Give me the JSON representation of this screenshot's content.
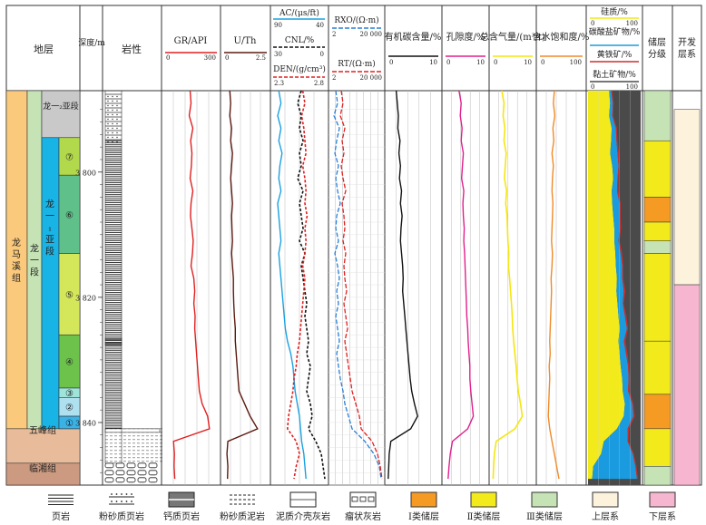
{
  "headers": {
    "formation": "地层",
    "depth": "深度/m",
    "lithology": "岩性",
    "gr": "GR/API",
    "uth": "U/Th",
    "ac": "AC/(μs/ft)",
    "cnl": "CNL/%",
    "den": "DEN/(g/cm³)",
    "rxo": "RXO/(Ω·m)",
    "rt": "RT/(Ω·m)",
    "toc": "有机碳含量/%",
    "por": "孔隙度/%",
    "gas": "总含气量/(m³/t)",
    "sw": "含水饱和度/%",
    "mineral_siliceous": "硅质/%",
    "mineral_carbonate": "碳酸盐矿物/%",
    "mineral_pyrite": "黄铁矿/%",
    "mineral_clay": "黏土矿物/%",
    "reservoir_grade": "储层分级",
    "dev_layer": "开发层系"
  },
  "scales": {
    "gr": [
      "0",
      "300"
    ],
    "uth": [
      "0",
      "2.5"
    ],
    "ac": [
      "90",
      "40"
    ],
    "cnl": [
      "30",
      "0"
    ],
    "den": [
      "2.3",
      "2.8"
    ],
    "rxo": [
      "2",
      "20 000"
    ],
    "rt": [
      "2",
      "20 000"
    ],
    "toc": [
      "0",
      "10"
    ],
    "por": [
      "0",
      "10"
    ],
    "gas": [
      "0",
      "10"
    ],
    "sw": [
      "0",
      "100"
    ],
    "mineral": [
      "0",
      "100"
    ]
  },
  "strata": {
    "formation_longmaxi": "龙马溪组",
    "member_long1": "龙一段",
    "submember_long1_1": "龙一₁亚段",
    "submember_long1_2": "龙一₂亚段",
    "formation_wufeng": "五峰组",
    "formation_linxiang": "临湘组",
    "layers": [
      "⑦",
      "⑥",
      "⑤",
      "④",
      "③",
      "②",
      "①"
    ]
  },
  "depth_ticks": [
    "3 800",
    "3 820",
    "3 840"
  ],
  "legend": {
    "shale": "页岩",
    "silty_shale": "粉砂质页岩",
    "calcareous_shale": "钙质页岩",
    "silty_mudstone": "粉砂质泥岩",
    "shelly_limestone": "泥质介壳灰岩",
    "nodular_limestone": "瘤状灰岩",
    "class1": "Ⅰ类储层",
    "class2": "Ⅱ类储层",
    "class3": "Ⅲ类储层",
    "upper": "上层系",
    "lower": "下层系"
  },
  "colors": {
    "gr": "#e02020",
    "uth": "#5a1a10",
    "ac": "#1aa0e0",
    "cnl": "#111111",
    "den": "#e02020",
    "rxo": "#2a7fd4",
    "rt": "#e02020",
    "toc": "#111111",
    "por": "#e0208c",
    "gas": "#f5e610",
    "sw": "#f08a28",
    "siliceous": "#f2ea1a",
    "carbonate": "#1a9be0",
    "pyrite": "#c83030",
    "clay": "#4a4a4a",
    "class1": "#f59a22",
    "class2": "#f2ea1a",
    "class3": "#c5e3b5",
    "upper": "#fdf2dc",
    "lower": "#f7b6cf",
    "long1_1": "#19b4e6",
    "member_long1": "#c5e3b5",
    "formation_longmaxi": "#fbc97b",
    "wufeng": "#e8bc9a",
    "linxiang": "#cc9a80",
    "submember_long1_2": "#c9c9c9",
    "layer1": "#3ab2e6",
    "layer2": "#aee0f0",
    "layer3": "#9ee4d8",
    "layer4": "#6cc24a",
    "layer5": "#d4e65a",
    "layer6": "#5fc08a",
    "layer7": "#b2d84c"
  },
  "chart_data": {
    "type": "well-log",
    "depth_axis": {
      "unit": "m",
      "range": [
        3787,
        3850
      ],
      "ticks": [
        3800,
        3820,
        3840
      ]
    },
    "depth": [
      3787,
      3789,
      3791,
      3793,
      3795,
      3797,
      3799,
      3801,
      3803,
      3805,
      3807,
      3809,
      3811,
      3813,
      3815,
      3817,
      3819,
      3821,
      3823,
      3825,
      3827,
      3829,
      3831,
      3833,
      3835,
      3837,
      3839,
      3841,
      3843,
      3845,
      3847,
      3849
    ],
    "curves": [
      {
        "name": "GR",
        "unit": "API",
        "range": [
          0,
          300
        ],
        "values": [
          145,
          150,
          140,
          160,
          148,
          155,
          152,
          145,
          160,
          150,
          147,
          155,
          162,
          158,
          150,
          165,
          170,
          165,
          172,
          170,
          175,
          180,
          185,
          190,
          195,
          210,
          240,
          250,
          55,
          60,
          58,
          62
        ]
      },
      {
        "name": "U/Th",
        "unit": "",
        "range": [
          0,
          2.5
        ],
        "values": [
          0.4,
          0.45,
          0.4,
          0.5,
          0.45,
          0.55,
          0.5,
          0.45,
          0.5,
          0.55,
          0.5,
          0.52,
          0.55,
          0.5,
          0.55,
          0.6,
          0.6,
          0.62,
          0.65,
          0.7,
          0.7,
          0.75,
          0.8,
          0.85,
          0.9,
          1.2,
          1.5,
          1.9,
          0.3,
          0.25,
          0.3,
          0.28
        ]
      },
      {
        "name": "AC",
        "unit": "μs/ft",
        "range": [
          90,
          40
        ],
        "values": [
          84,
          82,
          85,
          82,
          84,
          81,
          83,
          84,
          82,
          85,
          84,
          83,
          82,
          84,
          83,
          82,
          81,
          80,
          79,
          78,
          76,
          73,
          71,
          70,
          69,
          67,
          65,
          64,
          63,
          61,
          60,
          59
        ]
      },
      {
        "name": "CNL",
        "unit": "%",
        "range": [
          30,
          0
        ],
        "values": [
          14,
          16,
          14,
          15,
          13,
          15,
          14,
          16,
          13,
          15,
          14,
          13,
          15,
          12,
          14,
          13,
          12,
          11,
          12,
          11,
          10,
          11,
          9,
          10,
          11,
          9,
          8,
          10,
          6,
          3,
          2,
          1
        ]
      },
      {
        "name": "DEN",
        "unit": "g/cm³",
        "range": [
          2.3,
          2.8
        ],
        "values": [
          2.58,
          2.6,
          2.57,
          2.59,
          2.6,
          2.61,
          2.58,
          2.6,
          2.61,
          2.6,
          2.62,
          2.6,
          2.61,
          2.6,
          2.58,
          2.6,
          2.59,
          2.58,
          2.57,
          2.56,
          2.55,
          2.53,
          2.52,
          2.5,
          2.49,
          2.47,
          2.45,
          2.44,
          2.52,
          2.55,
          2.52,
          2.5
        ]
      },
      {
        "name": "TOC",
        "unit": "%",
        "range": [
          0,
          10
        ],
        "values": [
          1.8,
          2.0,
          2.2,
          2.1,
          2.5,
          2.3,
          2.6,
          2.4,
          2.8,
          2.6,
          2.9,
          2.7,
          2.6,
          2.8,
          3.0,
          3.1,
          3.0,
          3.2,
          3.4,
          3.6,
          3.8,
          4.0,
          4.2,
          4.4,
          4.7,
          5.2,
          5.8,
          4.5,
          0.8,
          0.5,
          0.4,
          0.3
        ]
      },
      {
        "name": "POR",
        "unit": "%",
        "range": [
          0,
          10
        ],
        "values": [
          3.5,
          4.0,
          3.8,
          4.2,
          4.0,
          4.5,
          4.3,
          4.1,
          4.6,
          4.4,
          4.5,
          4.7,
          4.6,
          4.8,
          4.9,
          5.0,
          5.1,
          5.2,
          5.3,
          5.5,
          5.6,
          5.8,
          6.0,
          6.0,
          6.2,
          6.5,
          6.8,
          5.5,
          2.0,
          1.5,
          1.2,
          1.0
        ]
      },
      {
        "name": "Gas",
        "unit": "m³/t",
        "range": [
          0,
          10
        ],
        "values": [
          2.5,
          3.0,
          2.8,
          3.2,
          3.0,
          3.5,
          3.3,
          3.1,
          3.6,
          3.4,
          3.7,
          3.8,
          3.9,
          4.1,
          4.0,
          4.3,
          4.5,
          4.7,
          4.9,
          5.0,
          5.2,
          5.5,
          5.8,
          6.0,
          6.3,
          6.8,
          7.2,
          5.5,
          1.2,
          0.8,
          0.6,
          0.5
        ]
      },
      {
        "name": "Sw",
        "unit": "%",
        "range": [
          0,
          100
        ],
        "values": [
          35,
          33,
          36,
          32,
          34,
          30,
          33,
          31,
          30,
          32,
          31,
          30,
          29,
          31,
          30,
          28,
          29,
          28,
          27,
          26,
          25,
          26,
          24,
          25,
          24,
          23,
          22,
          25,
          30,
          35,
          40,
          45
        ]
      }
    ],
    "mineral_series": [
      {
        "name": "硅质",
        "boundary_from_left": [
          40,
          42,
          40,
          45,
          44,
          42,
          46,
          48,
          45,
          46,
          48,
          50,
          50,
          52,
          53,
          55,
          54,
          56,
          58,
          60,
          58,
          60,
          62,
          65,
          66,
          70,
          68,
          55,
          30,
          25,
          10,
          8
        ]
      },
      {
        "name": "碳酸盐矿物",
        "width": [
          4,
          5,
          6,
          8,
          10,
          14,
          12,
          8,
          10,
          14,
          12,
          10,
          8,
          10,
          12,
          10,
          14,
          10,
          12,
          14,
          10,
          12,
          14,
          12,
          10,
          14,
          18,
          20,
          45,
          60,
          80,
          85
        ]
      },
      {
        "name": "黄铁矿",
        "width": [
          2,
          2,
          2,
          2,
          2,
          3,
          2,
          2,
          3,
          2,
          2,
          3,
          2,
          3,
          2,
          2,
          3,
          2,
          3,
          2,
          3,
          3,
          2,
          3,
          3,
          2,
          3,
          3,
          2,
          2,
          2,
          2
        ]
      }
    ],
    "reservoir_grades": [
      {
        "from": 3787.0,
        "to": 3795.0,
        "class": 3
      },
      {
        "from": 3795.0,
        "to": 3804.0,
        "class": 2
      },
      {
        "from": 3804.0,
        "to": 3808.0,
        "class": 1
      },
      {
        "from": 3808.0,
        "to": 3811.0,
        "class": 2
      },
      {
        "from": 3811.0,
        "to": 3813.0,
        "class": 3
      },
      {
        "from": 3813.0,
        "to": 3827.0,
        "class": 2
      },
      {
        "from": 3827.0,
        "to": 3835.5,
        "class": 2
      },
      {
        "from": 3835.5,
        "to": 3841.0,
        "class": 1
      },
      {
        "from": 3841.0,
        "to": 3847.0,
        "class": 2
      },
      {
        "from": 3847.0,
        "to": 3850.0,
        "class": 3
      }
    ],
    "dev_layers": [
      {
        "from": 3790.0,
        "to": 3818.0,
        "layer": "上层系"
      },
      {
        "from": 3818.0,
        "to": 3850.0,
        "layer": "下层系"
      }
    ]
  }
}
